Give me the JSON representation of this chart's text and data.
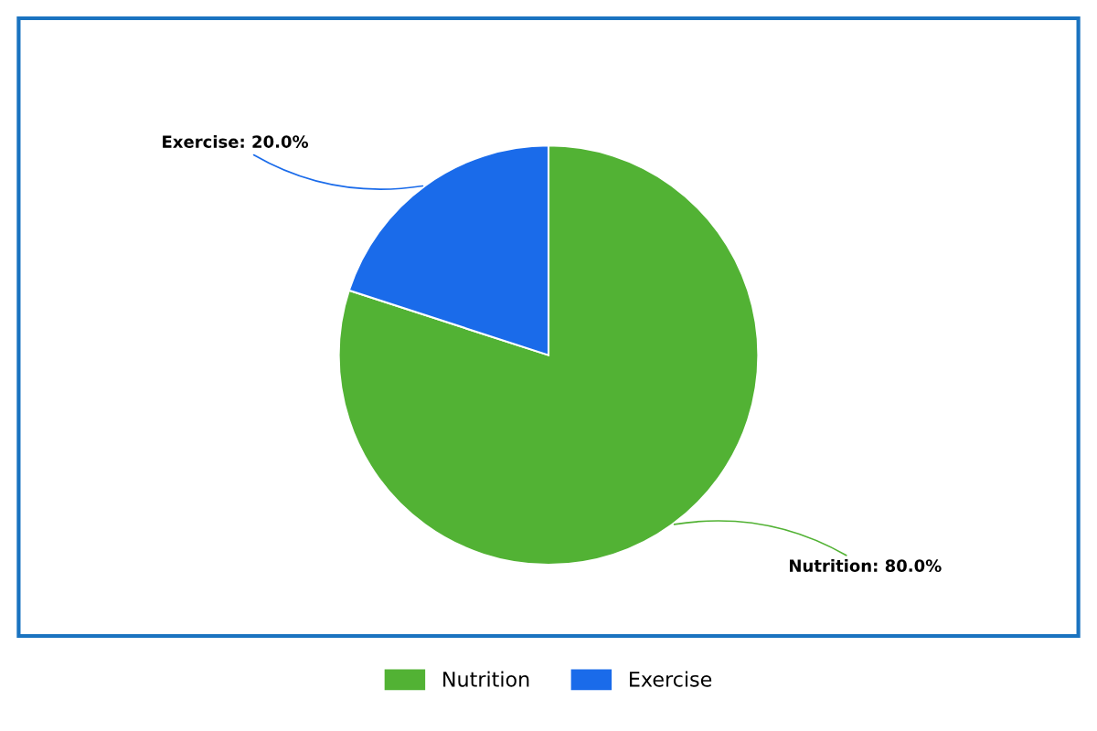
{
  "chart_data": {
    "type": "pie",
    "categories": [
      "Nutrition",
      "Exercise"
    ],
    "values": [
      80.0,
      20.0
    ],
    "colors": [
      "#52b234",
      "#1a6bea"
    ],
    "value_labels": [
      "Nutrition: 80.0%",
      "Exercise: 20.0%"
    ],
    "legend": "bottom"
  }
}
